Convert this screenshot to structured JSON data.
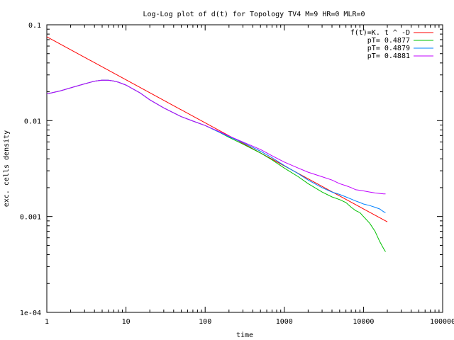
{
  "chart_data": {
    "type": "line",
    "title": "Log-Log plot of d(t) for Topology TV4 M=9 HR=0 MLR=0",
    "xlabel": "time",
    "ylabel": "exc. cells density",
    "xscale": "log",
    "yscale": "log",
    "xlim": [
      1,
      100000
    ],
    "ylim": [
      0.0001,
      0.1
    ],
    "x_ticks": [
      {
        "value": 1,
        "label": "1"
      },
      {
        "value": 10,
        "label": "10"
      },
      {
        "value": 100,
        "label": "100"
      },
      {
        "value": 1000,
        "label": "1000"
      },
      {
        "value": 10000,
        "label": "10000"
      },
      {
        "value": 100000,
        "label": "100000"
      }
    ],
    "y_ticks": [
      {
        "value": 0.1,
        "label": "0.1"
      },
      {
        "value": 0.01,
        "label": "0.01"
      },
      {
        "value": 0.001,
        "label": "0.001"
      },
      {
        "value": 0.0001,
        "label": "1e-04"
      }
    ],
    "grid": false,
    "legend_position": "top-right",
    "series": [
      {
        "name": "f(t)=K. t ^ -D",
        "color": "#ff0000",
        "x": [
          1,
          20000
        ],
        "y": [
          0.075,
          0.00088
        ]
      },
      {
        "name": "pT= 0.4877",
        "color": "#00c000",
        "x": [
          1,
          1.5,
          2,
          3,
          4,
          5,
          6,
          7,
          8,
          10,
          15,
          20,
          30,
          50,
          70,
          100,
          150,
          200,
          300,
          500,
          700,
          1000,
          1500,
          2000,
          3000,
          4000,
          5000,
          6000,
          7000,
          8000,
          9000,
          10000,
          12000,
          14000,
          16000,
          18000,
          19000
        ],
        "y": [
          0.019,
          0.0205,
          0.022,
          0.0242,
          0.0258,
          0.0265,
          0.0264,
          0.0259,
          0.0252,
          0.0235,
          0.0195,
          0.0165,
          0.0136,
          0.011,
          0.0099,
          0.0089,
          0.0076,
          0.0067,
          0.0057,
          0.0046,
          0.0039,
          0.0032,
          0.0026,
          0.0022,
          0.0018,
          0.0016,
          0.0015,
          0.0014,
          0.00125,
          0.00115,
          0.0011,
          0.001,
          0.00085,
          0.0007,
          0.00055,
          0.00046,
          0.00043
        ]
      },
      {
        "name": "pT= 0.4879",
        "color": "#0080ff",
        "x": [
          1,
          1.5,
          2,
          3,
          4,
          5,
          6,
          7,
          8,
          10,
          15,
          20,
          30,
          50,
          70,
          100,
          150,
          200,
          300,
          500,
          700,
          1000,
          1500,
          2000,
          3000,
          4000,
          5000,
          6000,
          7000,
          8000,
          9000,
          10000,
          12000,
          14000,
          16000,
          18000,
          19000
        ],
        "y": [
          0.019,
          0.0205,
          0.022,
          0.0242,
          0.0258,
          0.0265,
          0.0264,
          0.0259,
          0.0252,
          0.0235,
          0.0195,
          0.0165,
          0.0136,
          0.011,
          0.0099,
          0.0089,
          0.0076,
          0.0068,
          0.0059,
          0.0048,
          0.0041,
          0.0034,
          0.0028,
          0.0024,
          0.002,
          0.0018,
          0.0017,
          0.0016,
          0.00152,
          0.00145,
          0.0014,
          0.00135,
          0.0013,
          0.00125,
          0.0012,
          0.00112,
          0.0011
        ]
      },
      {
        "name": "pT= 0.4881",
        "color": "#c000ff",
        "x": [
          1,
          1.5,
          2,
          3,
          4,
          5,
          6,
          7,
          8,
          10,
          15,
          20,
          30,
          50,
          70,
          100,
          150,
          200,
          300,
          500,
          700,
          1000,
          1500,
          2000,
          3000,
          4000,
          5000,
          6000,
          7000,
          8000,
          9000,
          10000,
          12000,
          14000,
          16000,
          18000,
          19000
        ],
        "y": [
          0.019,
          0.0205,
          0.022,
          0.0242,
          0.0258,
          0.0265,
          0.0264,
          0.0259,
          0.0252,
          0.0235,
          0.0195,
          0.0165,
          0.0136,
          0.011,
          0.0099,
          0.0089,
          0.0077,
          0.0069,
          0.006,
          0.005,
          0.0043,
          0.0037,
          0.0032,
          0.0029,
          0.0026,
          0.0024,
          0.0022,
          0.0021,
          0.002,
          0.0019,
          0.00188,
          0.00185,
          0.0018,
          0.00176,
          0.00174,
          0.00172,
          0.00172
        ]
      }
    ]
  }
}
